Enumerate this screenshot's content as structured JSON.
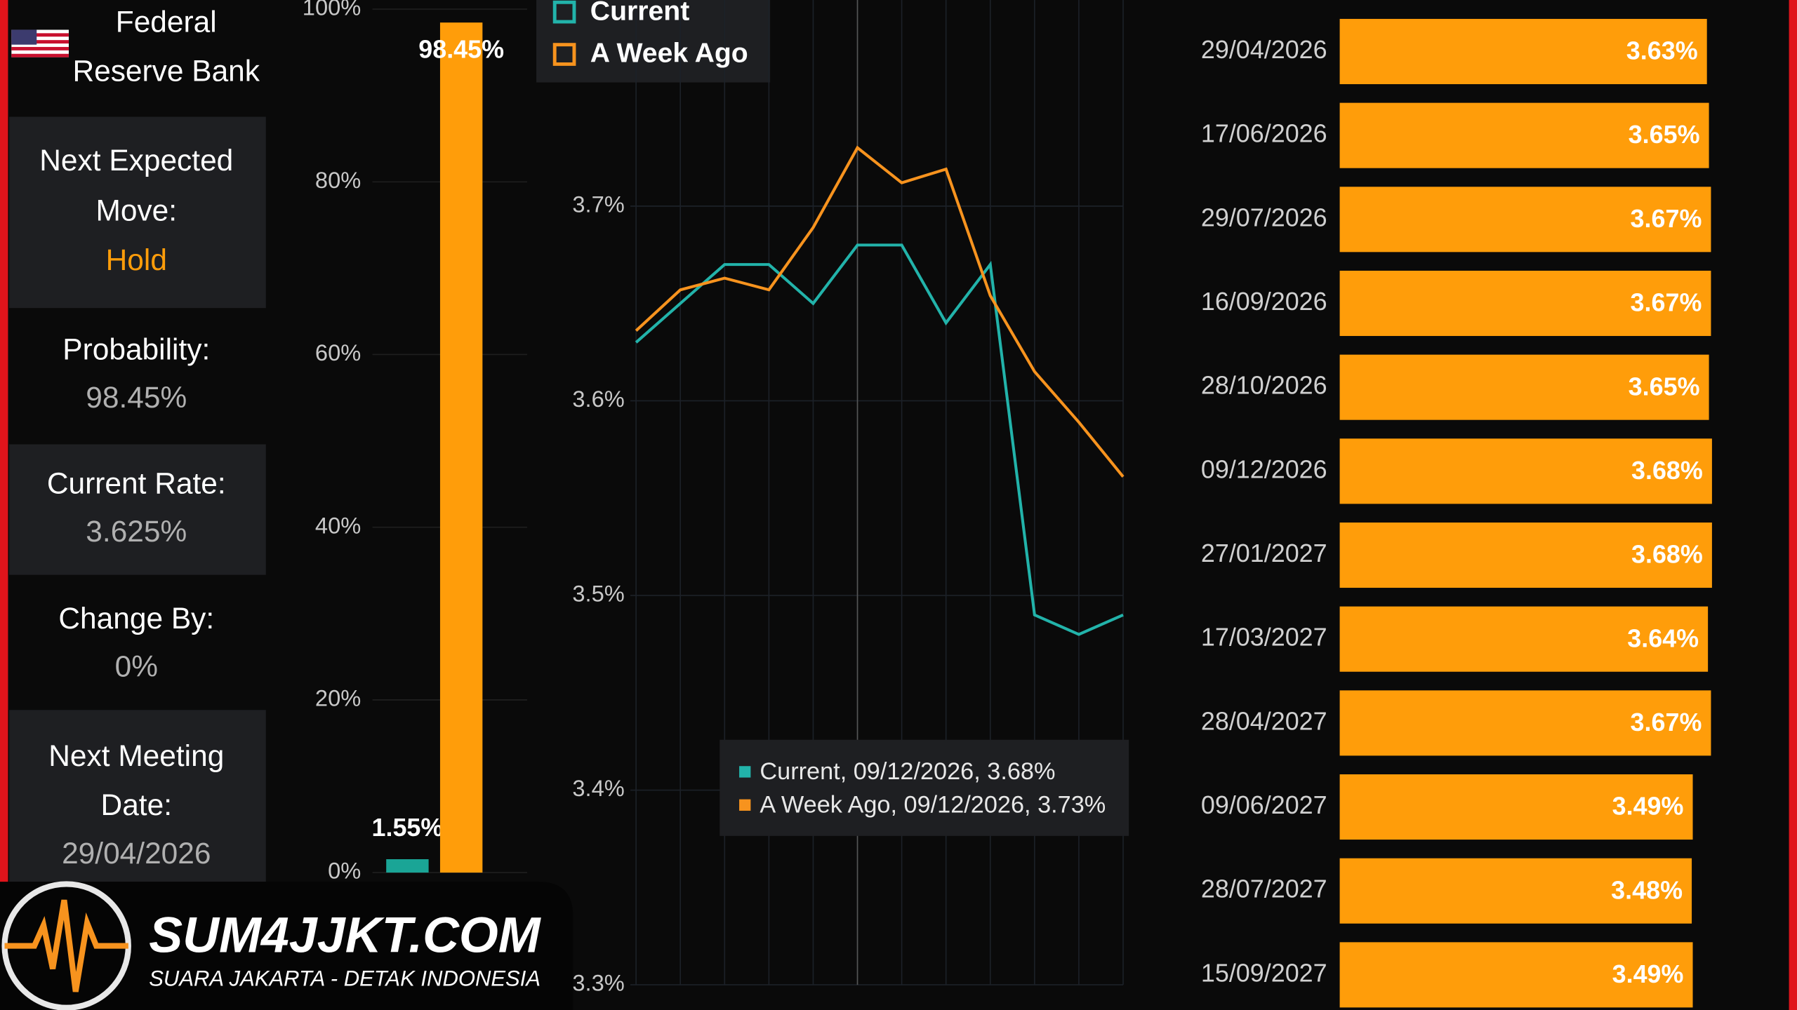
{
  "panel": {
    "bank": "Federal Reserve Bank",
    "items": [
      {
        "label": "Next Expected Move:",
        "value": "Hold"
      },
      {
        "label": "Probability:",
        "value": "98.45%"
      },
      {
        "label": "Current Rate:",
        "value": "3.625%"
      },
      {
        "label": "Change By:",
        "value": "0%"
      },
      {
        "label": "Next Meeting Date:",
        "value": "29/04/2026"
      }
    ]
  },
  "chart_data": [
    {
      "type": "bar",
      "categories": [
        null,
        null
      ],
      "values": [
        1.55,
        98.45
      ],
      "value_labels": [
        "1.55%",
        "98.45%"
      ],
      "colors": [
        "#1aa596",
        "#ff9d0a"
      ],
      "ylim": [
        0,
        100
      ],
      "yticks": [
        {
          "value": 0,
          "label": "0%"
        },
        {
          "value": 20,
          "label": "20%"
        },
        {
          "value": 40,
          "label": "40%"
        },
        {
          "value": 60,
          "label": "60%"
        },
        {
          "value": 80,
          "label": "80%"
        },
        {
          "value": 100,
          "label": "100%"
        }
      ],
      "grid": true
    },
    {
      "type": "line",
      "categories": [
        null,
        null,
        null,
        null,
        null,
        null,
        null,
        null,
        null,
        null,
        null,
        null
      ],
      "series": [
        {
          "name": "Current",
          "color": "#22b3aa",
          "values": [
            3.63,
            3.65,
            3.67,
            3.67,
            3.65,
            3.68,
            3.68,
            3.64,
            3.67,
            3.49,
            3.48,
            3.49
          ]
        },
        {
          "name": "A Week Ago",
          "color": "#f7931e",
          "values": [
            3.636,
            3.657,
            3.663,
            3.657,
            3.689,
            3.73,
            3.712,
            3.719,
            3.654,
            3.615,
            3.589,
            3.561
          ]
        }
      ],
      "ylim": [
        3.3,
        3.8
      ],
      "yticks": [
        {
          "value": 3.3,
          "label": "3.3%"
        },
        {
          "value": 3.4,
          "label": "3.4%"
        },
        {
          "value": 3.5,
          "label": "3.5%"
        },
        {
          "value": 3.6,
          "label": "3.6%"
        },
        {
          "value": 3.7,
          "label": "3.7%"
        }
      ],
      "grid": true,
      "legend": "top-left",
      "tooltip": [
        "Current, 09/12/2026, 3.68%",
        "A Week Ago, 09/12/2026, 3.73%"
      ]
    },
    {
      "type": "hbar",
      "categories": [
        "29/04/2026",
        "17/06/2026",
        "29/07/2026",
        "16/09/2026",
        "28/10/2026",
        "09/12/2026",
        "27/01/2027",
        "17/03/2027",
        "28/04/2027",
        "09/06/2027",
        "28/07/2027",
        "15/09/2027"
      ],
      "values": [
        3.63,
        3.65,
        3.67,
        3.67,
        3.65,
        3.68,
        3.68,
        3.64,
        3.67,
        3.49,
        3.48,
        3.49
      ],
      "value_labels": [
        "3.63%",
        "3.65%",
        "3.67%",
        "3.67%",
        "3.65%",
        "3.68%",
        "3.68%",
        "3.64%",
        "3.67%",
        "3.49%",
        "3.48%",
        "3.49%"
      ],
      "color": "#ff9d0a",
      "xlim": [
        0,
        3.75
      ]
    }
  ],
  "watermark": {
    "brand": "SUM4JJKT.COM",
    "tagline": "SUARA JAKARTA - DETAK INDONESIA"
  }
}
